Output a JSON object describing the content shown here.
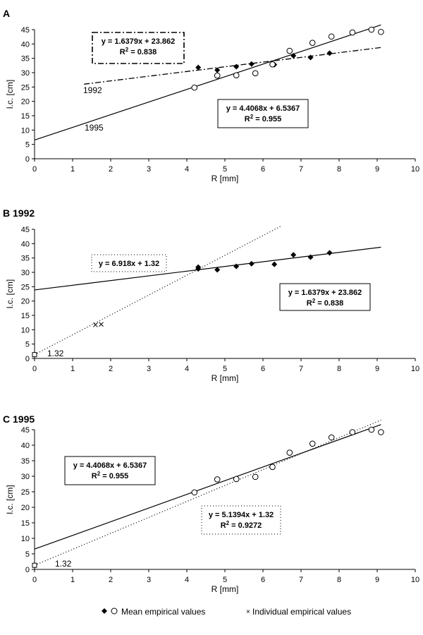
{
  "legend": {
    "mean_label": "Mean empirical values",
    "individual_label": "Individual empirical values"
  },
  "chart_data": [
    {
      "type": "scatter",
      "panel_label": "A",
      "xlabel": "R [mm]",
      "ylabel": "l.c. [cm]",
      "xlim": [
        0,
        10
      ],
      "ylim": [
        0,
        45
      ],
      "xticks": [
        0,
        1,
        2,
        3,
        4,
        5,
        6,
        7,
        8,
        9,
        10
      ],
      "yticks": [
        0,
        5,
        10,
        15,
        20,
        25,
        30,
        35,
        40,
        45
      ],
      "series": [
        {
          "name": "1992",
          "marker": "diamond",
          "points": [
            [
              4.3,
              31.8
            ],
            [
              4.8,
              30.9
            ],
            [
              5.3,
              32.1
            ],
            [
              5.7,
              33.0
            ],
            [
              6.3,
              32.8
            ],
            [
              6.8,
              35.9
            ],
            [
              7.25,
              35.3
            ],
            [
              7.75,
              36.8
            ]
          ]
        },
        {
          "name": "1995",
          "marker": "circle",
          "points": [
            [
              4.2,
              24.8
            ],
            [
              4.8,
              29.0
            ],
            [
              5.3,
              29.1
            ],
            [
              5.8,
              29.8
            ],
            [
              6.25,
              32.9
            ],
            [
              6.7,
              37.6
            ],
            [
              7.3,
              40.4
            ],
            [
              7.8,
              42.6
            ],
            [
              8.35,
              44.0
            ],
            [
              8.85,
              45.0
            ],
            [
              9.1,
              44.2
            ]
          ]
        }
      ],
      "lines": [
        {
          "slope": 1.6379,
          "intercept": 23.862,
          "x_range": [
            1.3,
            9.1
          ],
          "style": "dashdot",
          "series_label": "1992"
        },
        {
          "slope": 4.4068,
          "intercept": 6.5367,
          "x_range": [
            0,
            9.1
          ],
          "style": "solid",
          "series_label": "1995"
        }
      ],
      "annotations": [
        {
          "equation": "y = 1.6379x + 23.862",
          "r2": "R",
          "r2_value": " = 0.838",
          "box": "dashdot"
        },
        {
          "equation": "y = 4.4068x + 6.5367",
          "r2": "R",
          "r2_value": " = 0.955",
          "box": "solid"
        }
      ]
    },
    {
      "type": "scatter",
      "panel_label": "B 1992",
      "xlabel": "R [mm]",
      "ylabel": "l.c. [cm]",
      "xlim": [
        0,
        10
      ],
      "ylim": [
        0,
        45
      ],
      "xticks": [
        0,
        1,
        2,
        3,
        4,
        5,
        6,
        7,
        8,
        9,
        10
      ],
      "yticks": [
        0,
        5,
        10,
        15,
        20,
        25,
        30,
        35,
        40,
        45
      ],
      "series": [
        {
          "name": "Mean empirical values",
          "marker": "diamond",
          "points": [
            [
              4.3,
              31.8
            ],
            [
              4.3,
              31.2
            ],
            [
              4.8,
              30.9
            ],
            [
              5.3,
              32.1
            ],
            [
              5.7,
              33.0
            ],
            [
              6.3,
              32.8
            ],
            [
              6.8,
              36.1
            ],
            [
              7.25,
              35.3
            ],
            [
              7.75,
              36.8
            ]
          ]
        },
        {
          "name": "Individual empirical values",
          "marker": "x",
          "points": [
            [
              1.6,
              11.7
            ],
            [
              1.75,
              11.9
            ]
          ]
        },
        {
          "name": "",
          "marker": "square",
          "points": [
            [
              0,
              1.32
            ]
          ]
        }
      ],
      "lines": [
        {
          "slope": 1.6379,
          "intercept": 23.862,
          "x_range": [
            0,
            9.1
          ],
          "style": "solid"
        },
        {
          "slope": 6.918,
          "intercept": 1.32,
          "x_range": [
            0,
            6.5
          ],
          "style": "dotted"
        }
      ],
      "annotations": [
        {
          "equation": "y = 6.918x + 1.32",
          "box": "dotted"
        },
        {
          "equation": "y = 1.6379x + 23.862",
          "r2": "R",
          "r2_value": " = 0.838",
          "box": "solid"
        }
      ],
      "intercept_label": "1.32"
    },
    {
      "type": "scatter",
      "panel_label": "C 1995",
      "xlabel": "R [mm]",
      "ylabel": "l.c. [cm]",
      "xlim": [
        0,
        10
      ],
      "ylim": [
        0,
        45
      ],
      "xticks": [
        0,
        1,
        2,
        3,
        4,
        5,
        6,
        7,
        8,
        9,
        10
      ],
      "yticks": [
        0,
        5,
        10,
        15,
        20,
        25,
        30,
        35,
        40,
        45
      ],
      "series": [
        {
          "name": "Mean empirical values",
          "marker": "circle",
          "points": [
            [
              4.2,
              24.8
            ],
            [
              4.8,
              29.0
            ],
            [
              5.3,
              29.1
            ],
            [
              5.8,
              29.8
            ],
            [
              6.25,
              33.0
            ],
            [
              6.7,
              37.6
            ],
            [
              7.3,
              40.5
            ],
            [
              7.8,
              42.5
            ],
            [
              8.35,
              44.2
            ],
            [
              8.85,
              45.0
            ],
            [
              9.1,
              44.2
            ]
          ]
        },
        {
          "name": "",
          "marker": "square",
          "points": [
            [
              0,
              1.32
            ]
          ]
        }
      ],
      "lines": [
        {
          "slope": 4.4068,
          "intercept": 6.5367,
          "x_range": [
            0,
            9.1
          ],
          "style": "solid"
        },
        {
          "slope": 5.1394,
          "intercept": 1.32,
          "x_range": [
            0,
            9.1
          ],
          "style": "dotted"
        }
      ],
      "annotations": [
        {
          "equation": "y = 4.4068x + 6.5367",
          "r2": "R",
          "r2_value": " = 0.955",
          "box": "solid"
        },
        {
          "equation": "y = 5.1394x + 1.32",
          "r2": "R",
          "r2_value": " = 0.9272",
          "box": "dotted"
        }
      ],
      "intercept_label": "1.32"
    }
  ]
}
